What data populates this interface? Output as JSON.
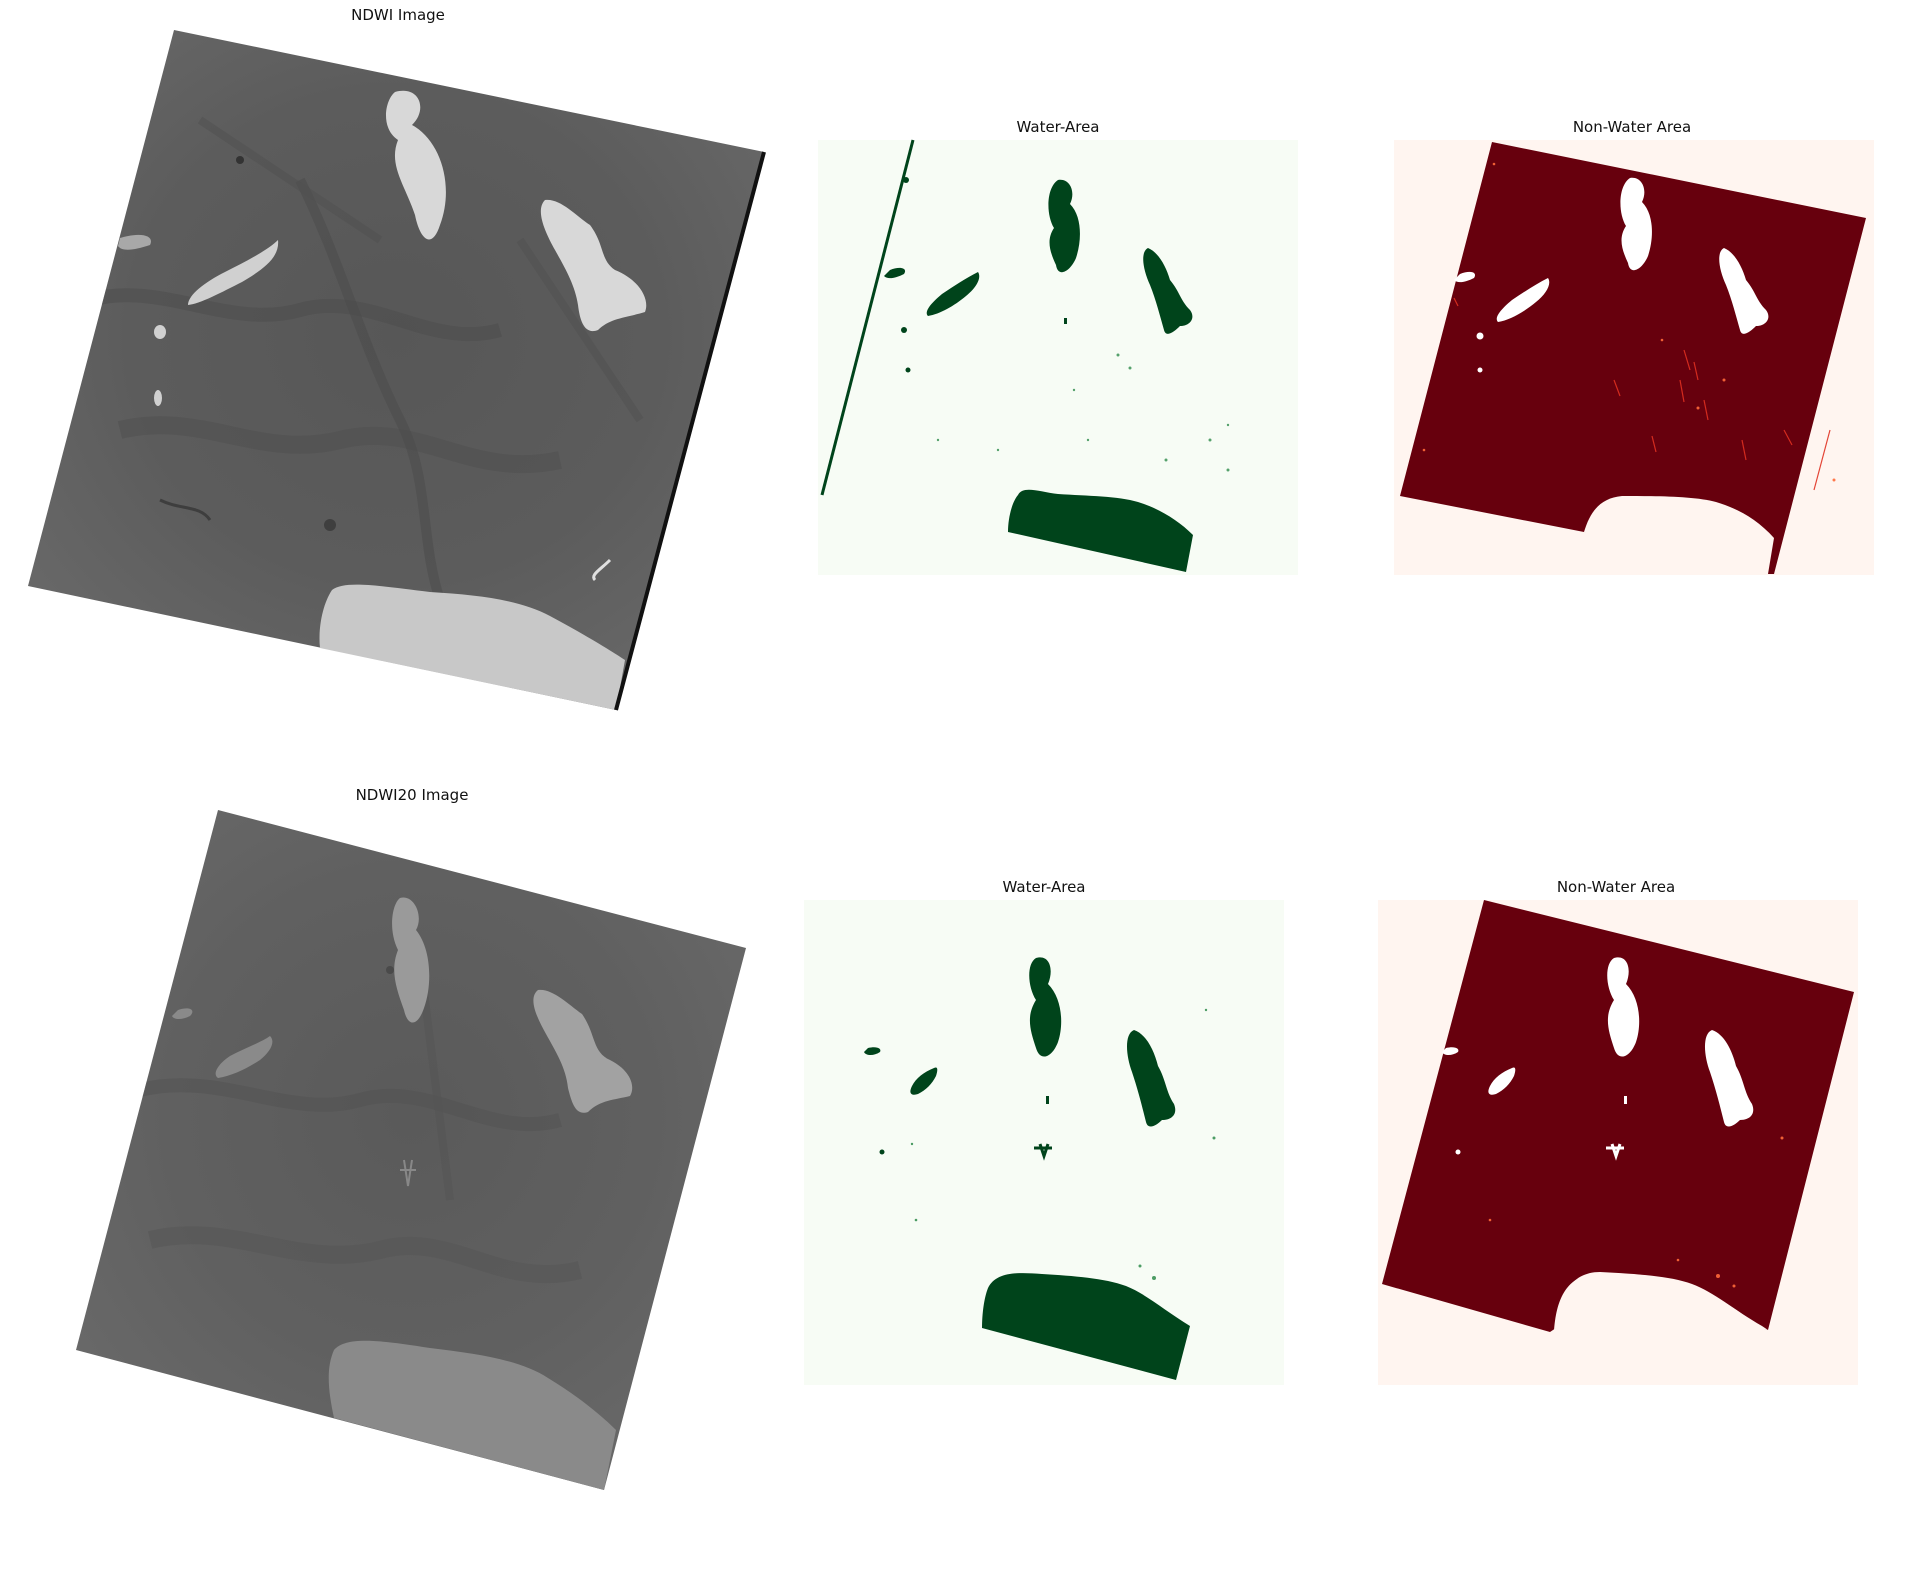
{
  "figure": {
    "panels": [
      {
        "id": "ndwi",
        "title": "NDWI Image",
        "kind": "grayscale-satellite"
      },
      {
        "id": "water1",
        "title": "Water-Area",
        "kind": "binary-mask",
        "colormap": "Greens"
      },
      {
        "id": "nonwater1",
        "title": "Non-Water Area",
        "kind": "binary-mask",
        "colormap": "Reds"
      },
      {
        "id": "ndwi20",
        "title": "NDWI20 Image",
        "kind": "grayscale-satellite"
      },
      {
        "id": "water2",
        "title": "Water-Area",
        "kind": "binary-mask",
        "colormap": "Greens"
      },
      {
        "id": "nonwater2",
        "title": "Non-Water Area",
        "kind": "binary-mask",
        "colormap": "Reds"
      }
    ]
  },
  "colors": {
    "page_background": "#ffffff",
    "gray_land": "#5f5f5f",
    "gray_land_dark": "#4a4a4a",
    "gray_water_ndwi": "#d8d8d8",
    "gray_water_ndwi20": "#9a9a9a",
    "greens_low": "#f7fcf5",
    "greens_high": "#00441b",
    "reds_low": "#fff5f0",
    "reds_high": "#67000d",
    "white": "#ffffff"
  }
}
